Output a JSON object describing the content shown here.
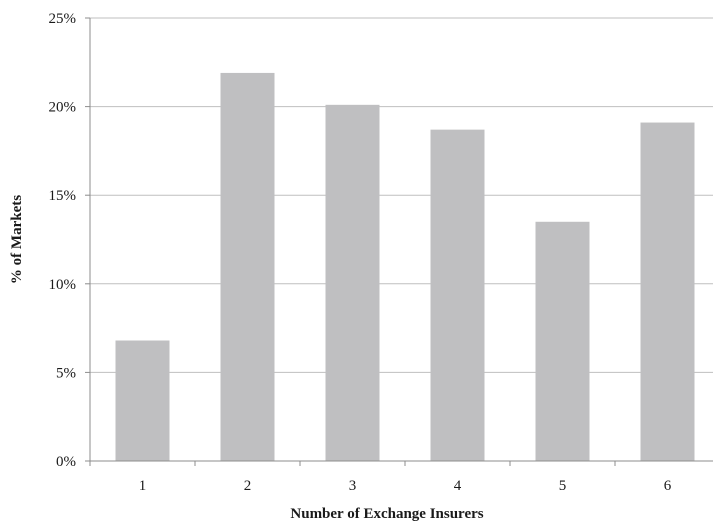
{
  "chart_data": {
    "type": "bar",
    "title": "",
    "xlabel": "Number of Exchange Insurers",
    "ylabel": "% of Markets",
    "categories": [
      "1",
      "2",
      "3",
      "4",
      "5",
      "6"
    ],
    "values": [
      6.8,
      21.9,
      20.1,
      18.7,
      13.5,
      19.1
    ],
    "ylim": [
      0,
      25
    ],
    "yticks": [
      0,
      5,
      10,
      15,
      20,
      25
    ],
    "ytick_labels": [
      "0%",
      "5%",
      "10%",
      "15%",
      "20%",
      "25%"
    ],
    "value_unit": "%",
    "grid": true,
    "legend": "none",
    "bar_color": "#bfbfc1"
  }
}
